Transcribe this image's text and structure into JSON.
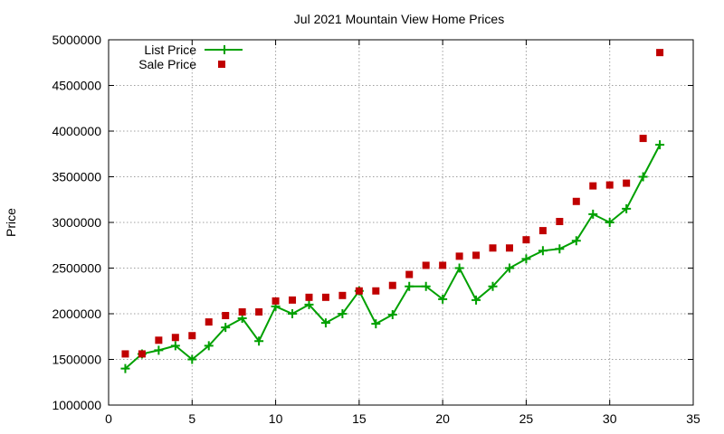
{
  "chart_data": {
    "type": "line",
    "title": "Jul 2021 Mountain View Home Prices",
    "xlabel": "",
    "ylabel": "Price",
    "xlim": [
      0,
      35
    ],
    "ylim": [
      1000000,
      5000000
    ],
    "xticks": [
      0,
      5,
      10,
      15,
      20,
      25,
      30,
      35
    ],
    "yticks": [
      1000000,
      1500000,
      2000000,
      2500000,
      3000000,
      3500000,
      4000000,
      4500000,
      5000000
    ],
    "grid": true,
    "legend_position": "top-left",
    "x": [
      1,
      2,
      3,
      4,
      5,
      6,
      7,
      8,
      9,
      10,
      11,
      12,
      13,
      14,
      15,
      16,
      17,
      18,
      19,
      20,
      21,
      22,
      23,
      24,
      25,
      26,
      27,
      28,
      29,
      30,
      31,
      32,
      33
    ],
    "series": [
      {
        "name": "List Price",
        "style": "line-points",
        "color": "#00a000",
        "values": [
          1400000,
          1560000,
          1600000,
          1650000,
          1500000,
          1650000,
          1850000,
          1950000,
          1700000,
          2080000,
          2000000,
          2100000,
          1900000,
          2000000,
          2250000,
          1890000,
          1990000,
          2300000,
          2300000,
          2160000,
          2500000,
          2150000,
          2300000,
          2500000,
          2600000,
          2690000,
          2710000,
          2800000,
          3090000,
          3000000,
          3150000,
          3500000,
          3850000
        ]
      },
      {
        "name": "Sale Price",
        "style": "points",
        "color": "#c00000",
        "values": [
          1560000,
          1560000,
          1710000,
          1740000,
          1760000,
          1910000,
          1980000,
          2020000,
          2020000,
          2140000,
          2150000,
          2180000,
          2180000,
          2200000,
          2250000,
          2250000,
          2310000,
          2430000,
          2530000,
          2530000,
          2630000,
          2640000,
          2720000,
          2720000,
          2810000,
          2910000,
          3010000,
          3230000,
          3400000,
          3410000,
          3430000,
          3920000,
          4860000
        ]
      }
    ]
  }
}
